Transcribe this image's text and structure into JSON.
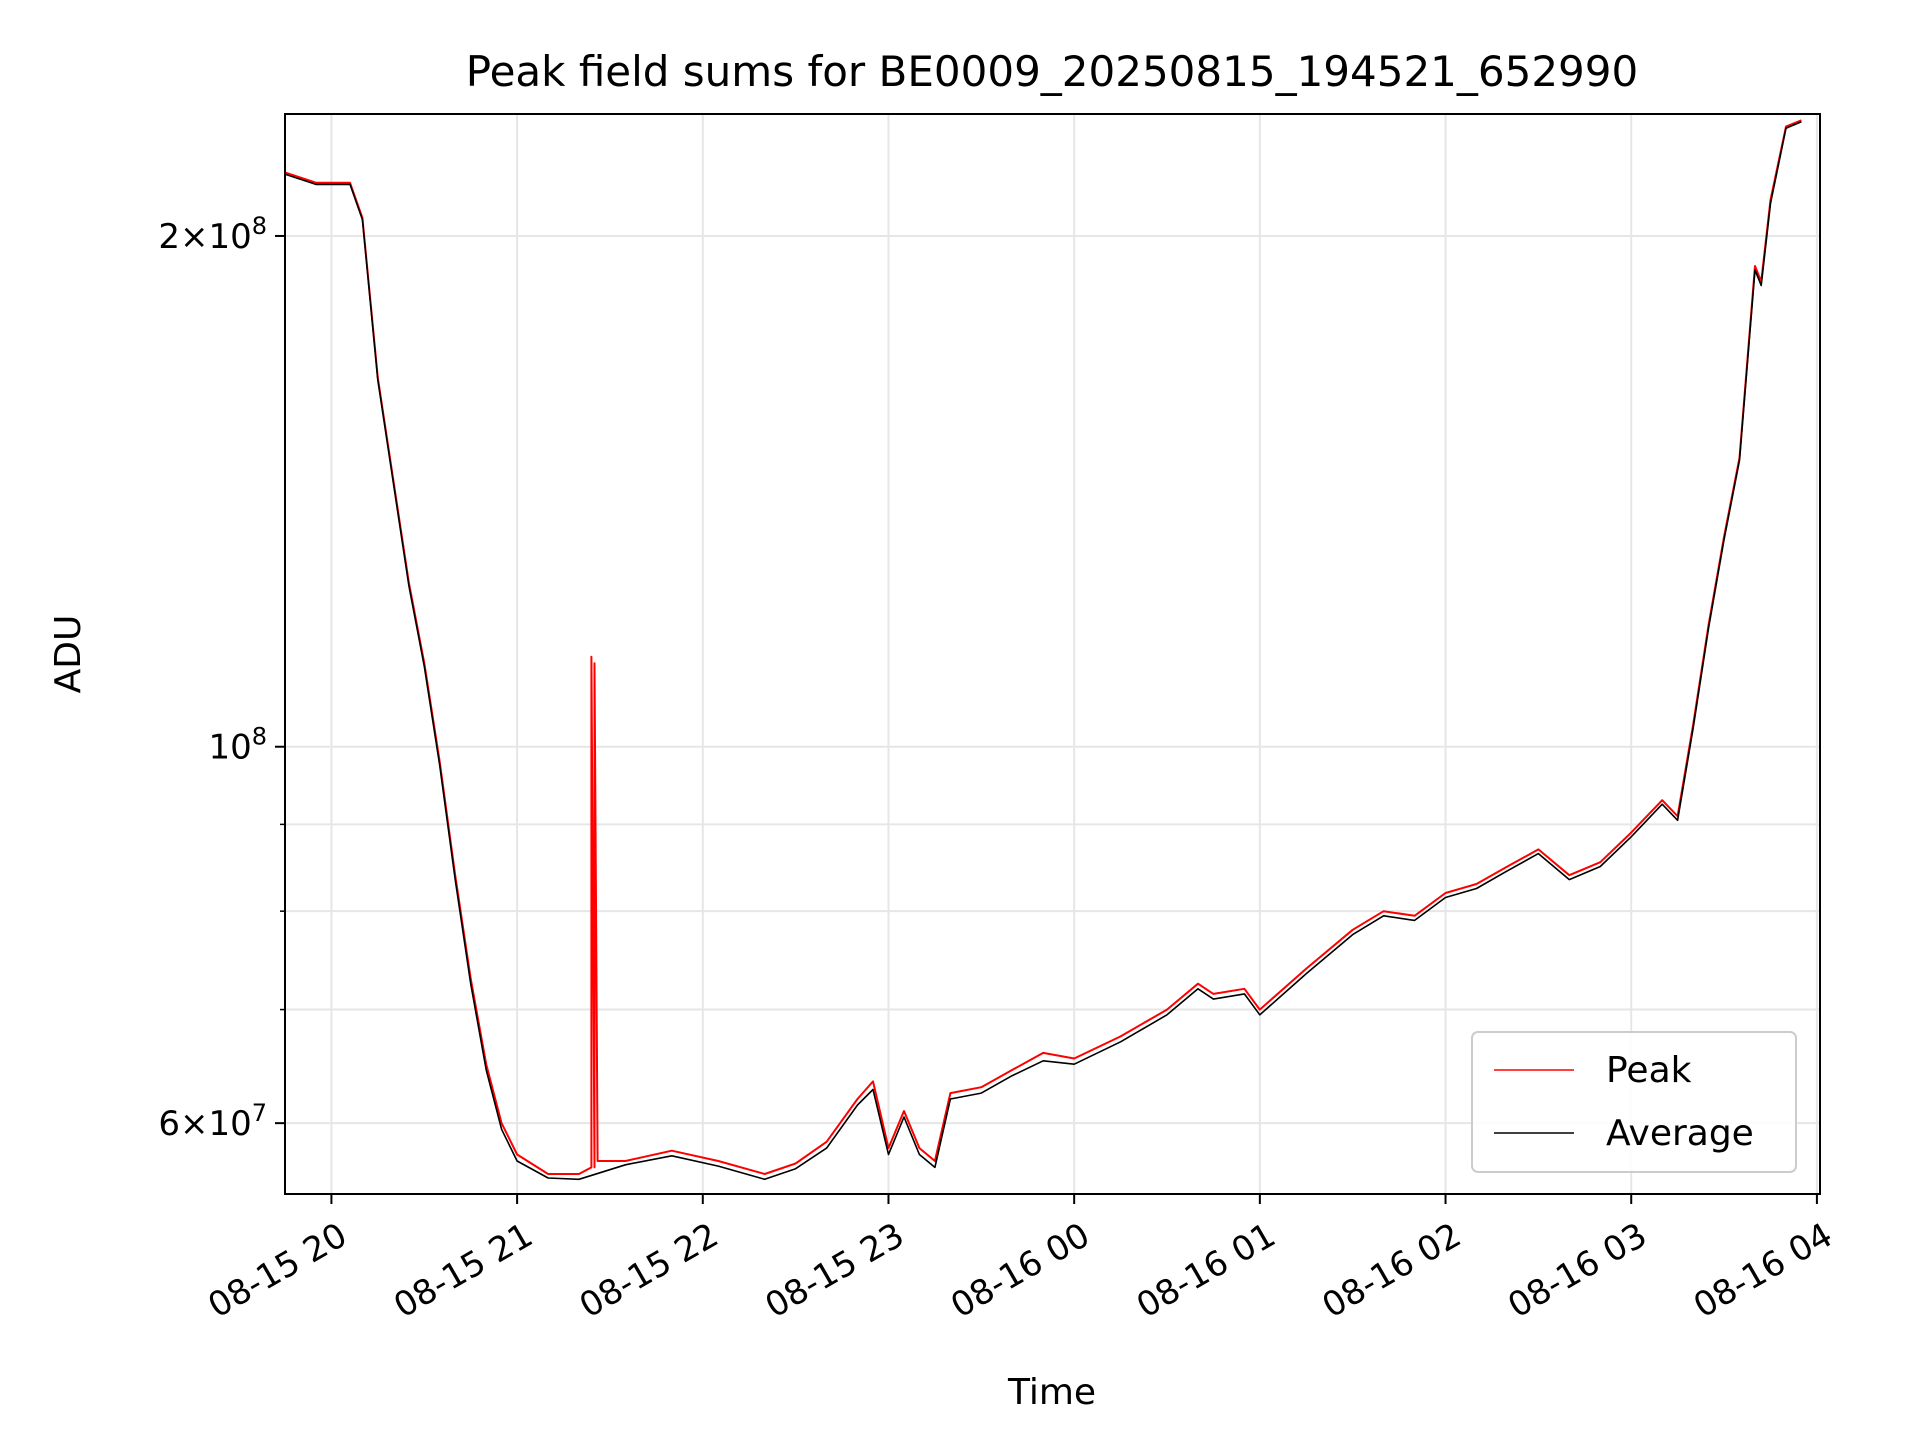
{
  "chart_data": {
    "type": "line",
    "title": "Peak field sums for BE0009_20250815_194521_652990",
    "xlabel": "Time",
    "ylabel": "ADU",
    "x_scale": "time",
    "y_scale": "log",
    "xlim": [
      "2025-08-15 19:45",
      "2025-08-16 04:01"
    ],
    "ylim": [
      54500000,
      236000000
    ],
    "grid": true,
    "legend_position": "lower right",
    "x_ticks": [
      {
        "t": "2025-08-15 20:00",
        "label": "08-15 20"
      },
      {
        "t": "2025-08-15 21:00",
        "label": "08-15 21"
      },
      {
        "t": "2025-08-15 22:00",
        "label": "08-15 22"
      },
      {
        "t": "2025-08-15 23:00",
        "label": "08-15 23"
      },
      {
        "t": "2025-08-16 00:00",
        "label": "08-16 00"
      },
      {
        "t": "2025-08-16 01:00",
        "label": "08-16 01"
      },
      {
        "t": "2025-08-16 02:00",
        "label": "08-16 02"
      },
      {
        "t": "2025-08-16 03:00",
        "label": "08-16 03"
      },
      {
        "t": "2025-08-16 04:00",
        "label": "08-16 04"
      }
    ],
    "y_ticks": [
      {
        "v": 60000000,
        "base": "6",
        "times": "×",
        "power": "10",
        "exp": "7"
      },
      {
        "v": 100000000,
        "base": "",
        "times": "",
        "power": "10",
        "exp": "8"
      },
      {
        "v": 200000000,
        "base": "2",
        "times": "×",
        "power": "10",
        "exp": "8"
      }
    ],
    "y_minor_gridlines": [
      70000000,
      80000000,
      90000000
    ],
    "series": [
      {
        "name": "Peak",
        "color": "#ff0000",
        "points": [
          [
            "2025-08-15 19:45",
            218000000
          ],
          [
            "2025-08-15 19:55",
            215000000
          ],
          [
            "2025-08-15 20:06",
            215000000
          ],
          [
            "2025-08-15 20:10",
            205000000
          ],
          [
            "2025-08-15 20:15",
            165000000
          ],
          [
            "2025-08-15 20:25",
            125000000
          ],
          [
            "2025-08-15 20:30",
            112000000
          ],
          [
            "2025-08-15 20:35",
            98000000
          ],
          [
            "2025-08-15 20:40",
            84000000
          ],
          [
            "2025-08-15 20:45",
            73000000
          ],
          [
            "2025-08-15 20:50",
            65000000
          ],
          [
            "2025-08-15 20:55",
            60000000
          ],
          [
            "2025-08-15 21:00",
            57500000
          ],
          [
            "2025-08-15 21:10",
            56000000
          ],
          [
            "2025-08-15 21:20",
            56000000
          ],
          [
            "2025-08-15 21:24",
            56500000
          ],
          [
            "2025-08-15 21:24",
            113000000
          ],
          [
            "2025-08-15 21:25",
            56500000
          ],
          [
            "2025-08-15 21:25",
            112000000
          ],
          [
            "2025-08-15 21:26",
            57000000
          ],
          [
            "2025-08-15 21:35",
            57000000
          ],
          [
            "2025-08-15 21:50",
            57800000
          ],
          [
            "2025-08-15 22:05",
            57000000
          ],
          [
            "2025-08-15 22:20",
            56000000
          ],
          [
            "2025-08-15 22:30",
            56800000
          ],
          [
            "2025-08-15 22:40",
            58500000
          ],
          [
            "2025-08-15 22:50",
            62000000
          ],
          [
            "2025-08-15 22:55",
            63500000
          ],
          [
            "2025-08-15 23:00",
            58000000
          ],
          [
            "2025-08-15 23:05",
            61000000
          ],
          [
            "2025-08-15 23:10",
            58000000
          ],
          [
            "2025-08-15 23:15",
            57000000
          ],
          [
            "2025-08-15 23:20",
            62500000
          ],
          [
            "2025-08-15 23:30",
            63000000
          ],
          [
            "2025-08-15 23:40",
            64500000
          ],
          [
            "2025-08-15 23:50",
            66000000
          ],
          [
            "2025-08-16 00:00",
            65500000
          ],
          [
            "2025-08-16 00:15",
            67500000
          ],
          [
            "2025-08-16 00:30",
            70000000
          ],
          [
            "2025-08-16 00:40",
            72500000
          ],
          [
            "2025-08-16 00:45",
            71500000
          ],
          [
            "2025-08-16 00:55",
            72000000
          ],
          [
            "2025-08-16 01:00",
            70000000
          ],
          [
            "2025-08-16 01:15",
            74000000
          ],
          [
            "2025-08-16 01:30",
            78000000
          ],
          [
            "2025-08-16 01:40",
            80000000
          ],
          [
            "2025-08-16 01:50",
            79500000
          ],
          [
            "2025-08-16 02:00",
            82000000
          ],
          [
            "2025-08-16 02:10",
            83000000
          ],
          [
            "2025-08-16 02:20",
            85000000
          ],
          [
            "2025-08-16 02:30",
            87000000
          ],
          [
            "2025-08-16 02:40",
            84000000
          ],
          [
            "2025-08-16 02:50",
            85500000
          ],
          [
            "2025-08-16 03:00",
            89000000
          ],
          [
            "2025-08-16 03:10",
            93000000
          ],
          [
            "2025-08-16 03:15",
            91000000
          ],
          [
            "2025-08-16 03:20",
            103000000
          ],
          [
            "2025-08-16 03:25",
            118000000
          ],
          [
            "2025-08-16 03:30",
            133000000
          ],
          [
            "2025-08-16 03:35",
            148000000
          ],
          [
            "2025-08-16 03:40",
            192000000
          ],
          [
            "2025-08-16 03:42",
            188000000
          ],
          [
            "2025-08-16 03:45",
            210000000
          ],
          [
            "2025-08-16 03:50",
            232000000
          ],
          [
            "2025-08-16 03:55",
            234000000
          ]
        ]
      },
      {
        "name": "Average",
        "color": "#000000",
        "points": [
          [
            "2025-08-15 19:45",
            217500000
          ],
          [
            "2025-08-15 19:55",
            214500000
          ],
          [
            "2025-08-15 20:06",
            214500000
          ],
          [
            "2025-08-15 20:10",
            204500000
          ],
          [
            "2025-08-15 20:15",
            164500000
          ],
          [
            "2025-08-15 20:25",
            124500000
          ],
          [
            "2025-08-15 20:30",
            111500000
          ],
          [
            "2025-08-15 20:35",
            97500000
          ],
          [
            "2025-08-15 20:40",
            83500000
          ],
          [
            "2025-08-15 20:45",
            72500000
          ],
          [
            "2025-08-15 20:50",
            64500000
          ],
          [
            "2025-08-15 20:55",
            59500000
          ],
          [
            "2025-08-15 21:00",
            57000000
          ],
          [
            "2025-08-15 21:10",
            55700000
          ],
          [
            "2025-08-15 21:20",
            55600000
          ],
          [
            "2025-08-15 21:35",
            56700000
          ],
          [
            "2025-08-15 21:50",
            57400000
          ],
          [
            "2025-08-15 22:05",
            56600000
          ],
          [
            "2025-08-15 22:20",
            55600000
          ],
          [
            "2025-08-15 22:30",
            56400000
          ],
          [
            "2025-08-15 22:40",
            58000000
          ],
          [
            "2025-08-15 22:50",
            61500000
          ],
          [
            "2025-08-15 22:55",
            62800000
          ],
          [
            "2025-08-15 23:00",
            57500000
          ],
          [
            "2025-08-15 23:05",
            60500000
          ],
          [
            "2025-08-15 23:10",
            57500000
          ],
          [
            "2025-08-15 23:15",
            56500000
          ],
          [
            "2025-08-15 23:20",
            62000000
          ],
          [
            "2025-08-15 23:30",
            62500000
          ],
          [
            "2025-08-15 23:40",
            64000000
          ],
          [
            "2025-08-15 23:50",
            65300000
          ],
          [
            "2025-08-16 00:00",
            65000000
          ],
          [
            "2025-08-16 00:15",
            67000000
          ],
          [
            "2025-08-16 00:30",
            69500000
          ],
          [
            "2025-08-16 00:40",
            72000000
          ],
          [
            "2025-08-16 00:45",
            71000000
          ],
          [
            "2025-08-16 00:55",
            71500000
          ],
          [
            "2025-08-16 01:00",
            69500000
          ],
          [
            "2025-08-16 01:15",
            73500000
          ],
          [
            "2025-08-16 01:30",
            77500000
          ],
          [
            "2025-08-16 01:40",
            79500000
          ],
          [
            "2025-08-16 01:50",
            79000000
          ],
          [
            "2025-08-16 02:00",
            81500000
          ],
          [
            "2025-08-16 02:10",
            82500000
          ],
          [
            "2025-08-16 02:20",
            84500000
          ],
          [
            "2025-08-16 02:30",
            86500000
          ],
          [
            "2025-08-16 02:40",
            83500000
          ],
          [
            "2025-08-16 02:50",
            85000000
          ],
          [
            "2025-08-16 03:00",
            88500000
          ],
          [
            "2025-08-16 03:10",
            92500000
          ],
          [
            "2025-08-16 03:15",
            90500000
          ],
          [
            "2025-08-16 03:20",
            102500000
          ],
          [
            "2025-08-16 03:25",
            117500000
          ],
          [
            "2025-08-16 03:30",
            132500000
          ],
          [
            "2025-08-16 03:35",
            147500000
          ],
          [
            "2025-08-16 03:40",
            191000000
          ],
          [
            "2025-08-16 03:42",
            187000000
          ],
          [
            "2025-08-16 03:45",
            209000000
          ],
          [
            "2025-08-16 03:50",
            231500000
          ],
          [
            "2025-08-16 03:55",
            233500000
          ]
        ]
      }
    ]
  }
}
